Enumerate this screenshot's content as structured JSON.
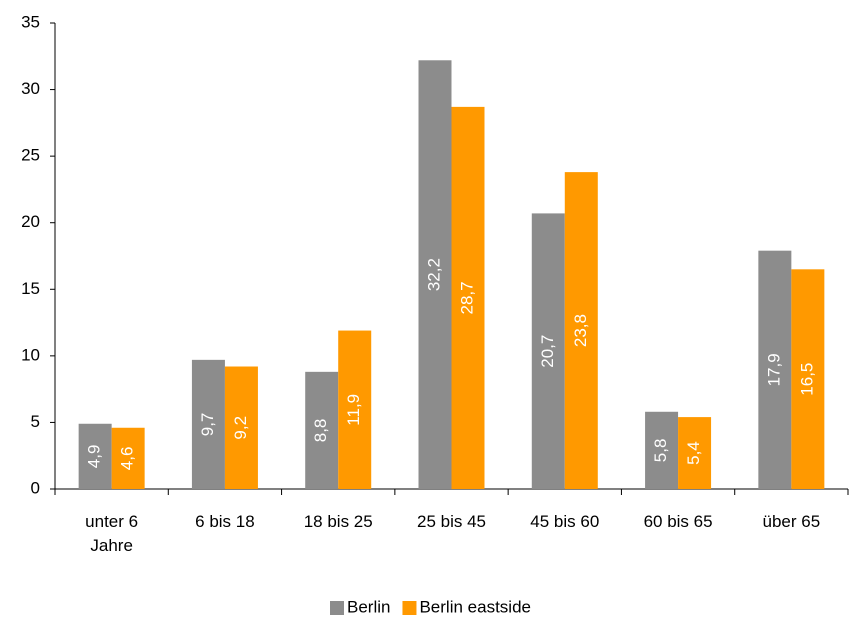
{
  "chart_data": {
    "type": "bar",
    "categories": [
      "unter 6 Jahre",
      "6 bis 18",
      "18 bis 25",
      "25 bis 45",
      "45 bis 60",
      "60 bis 65",
      "über 65"
    ],
    "series": [
      {
        "name": "Berlin",
        "color": "#8c8c8c",
        "values": [
          4.9,
          9.7,
          8.8,
          32.2,
          20.7,
          5.8,
          17.9
        ],
        "value_labels": [
          "4,9",
          "9,7",
          "8,8",
          "32,2",
          "20,7",
          "5,8",
          "17,9"
        ]
      },
      {
        "name": "Berlin eastside",
        "color": "#ff9900",
        "values": [
          4.6,
          9.2,
          11.9,
          28.7,
          23.8,
          5.4,
          16.5
        ],
        "value_labels": [
          "4,6",
          "9,2",
          "11,9",
          "28,7",
          "23,8",
          "5,4",
          "16,5"
        ]
      }
    ],
    "ylim": [
      0,
      35
    ],
    "yticks": [
      0,
      5,
      10,
      15,
      20,
      25,
      30,
      35
    ],
    "grid": false,
    "legend": "bottom"
  }
}
